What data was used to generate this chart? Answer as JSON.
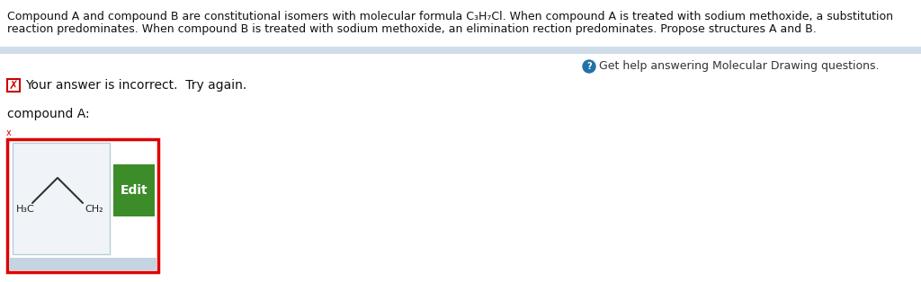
{
  "bg_color": "#ffffff",
  "top_text_line1": "Compound A and compound B are constitutional isomers with molecular formula C₃H₇Cl. When compound A is treated with sodium methoxide, a substitution",
  "top_text_line2": "reaction predominates. When compound B is treated with sodium methoxide, an elimination rection predominates. Propose structures A and B.",
  "divider_color": "#d0dce8",
  "help_icon_color": "#2272a8",
  "help_text": "Get help answering Molecular Drawing questions.",
  "help_text_color": "#333333",
  "error_box_color": "#cc0000",
  "error_text": "Your answer is incorrect.  Try again.",
  "compound_label": "compound A:",
  "molecule_box_outer_color": "#dd0000",
  "molecule_box_inner_bg": "#f0f4f8",
  "molecule_box_inner_border": "#b8ccd8",
  "edit_button_color": "#3d8c2a",
  "edit_button_text": "Edit",
  "edit_button_text_color": "#ffffff",
  "font_size_top": 9.0,
  "font_size_help": 9.0,
  "font_size_error": 10,
  "font_size_label": 10,
  "font_size_mol": 8,
  "text_color": "#111111"
}
